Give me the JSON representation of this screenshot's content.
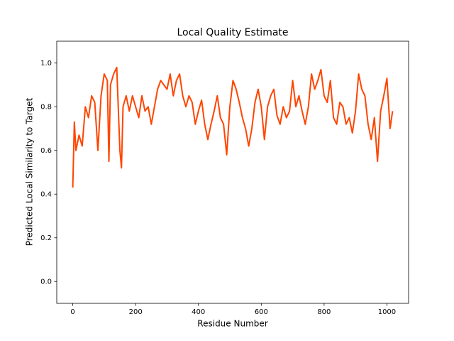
{
  "chart_data": {
    "type": "line",
    "title": "Local Quality Estimate",
    "x_label": "Residue Number",
    "y_label": "Predicted Local Similarity to Target",
    "xlim": [
      -51,
      1069
    ],
    "ylim": [
      -0.1,
      1.1
    ],
    "xticks": [
      0,
      200,
      400,
      600,
      800,
      1000
    ],
    "yticks": [
      {
        "value": 0,
        "label": "0.0"
      },
      0.2,
      0.4,
      0.6,
      0.8,
      {
        "value": 1,
        "label": "1.0"
      }
    ],
    "x": [
      0,
      5,
      10,
      20,
      30,
      40,
      50,
      60,
      70,
      80,
      90,
      100,
      110,
      115,
      120,
      130,
      140,
      150,
      155,
      160,
      170,
      180,
      190,
      200,
      210,
      220,
      230,
      240,
      250,
      260,
      270,
      280,
      290,
      300,
      310,
      320,
      330,
      340,
      350,
      360,
      370,
      380,
      390,
      400,
      410,
      420,
      430,
      440,
      450,
      460,
      470,
      480,
      490,
      500,
      510,
      520,
      530,
      540,
      550,
      560,
      570,
      580,
      590,
      600,
      610,
      620,
      630,
      640,
      650,
      660,
      670,
      680,
      690,
      700,
      710,
      720,
      730,
      740,
      750,
      760,
      770,
      780,
      790,
      800,
      810,
      820,
      830,
      840,
      850,
      860,
      870,
      880,
      890,
      900,
      910,
      920,
      930,
      940,
      950,
      960,
      970,
      980,
      990,
      1000,
      1010,
      1018
    ],
    "series": [
      {
        "color": "#ff4500",
        "values": [
          0.43,
          0.73,
          0.6,
          0.67,
          0.62,
          0.8,
          0.75,
          0.85,
          0.82,
          0.6,
          0.85,
          0.95,
          0.92,
          0.55,
          0.9,
          0.95,
          0.98,
          0.6,
          0.52,
          0.8,
          0.85,
          0.78,
          0.85,
          0.8,
          0.75,
          0.85,
          0.78,
          0.8,
          0.72,
          0.8,
          0.88,
          0.92,
          0.9,
          0.88,
          0.95,
          0.85,
          0.92,
          0.95,
          0.85,
          0.8,
          0.85,
          0.82,
          0.72,
          0.78,
          0.83,
          0.72,
          0.65,
          0.72,
          0.78,
          0.85,
          0.75,
          0.72,
          0.58,
          0.8,
          0.92,
          0.88,
          0.82,
          0.75,
          0.7,
          0.62,
          0.7,
          0.82,
          0.88,
          0.8,
          0.65,
          0.8,
          0.85,
          0.88,
          0.76,
          0.72,
          0.8,
          0.75,
          0.78,
          0.92,
          0.8,
          0.85,
          0.78,
          0.72,
          0.8,
          0.95,
          0.88,
          0.92,
          0.97,
          0.85,
          0.82,
          0.92,
          0.75,
          0.72,
          0.82,
          0.8,
          0.72,
          0.75,
          0.68,
          0.78,
          0.95,
          0.88,
          0.85,
          0.72,
          0.65,
          0.75,
          0.55,
          0.78,
          0.85,
          0.93,
          0.7,
          0.78
        ]
      }
    ]
  }
}
